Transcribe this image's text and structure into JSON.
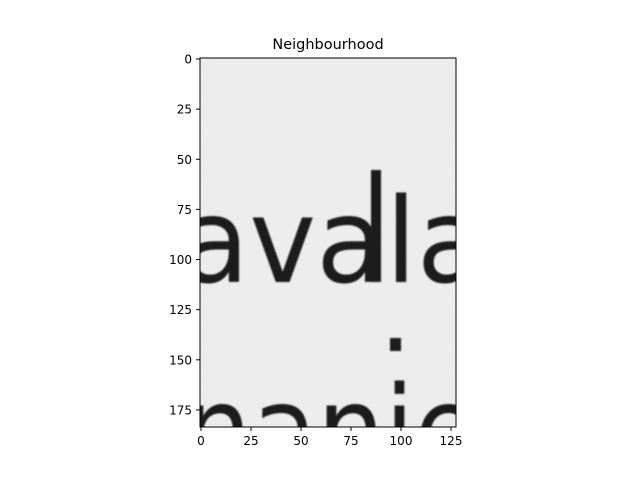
{
  "chart_data": {
    "type": "heatmap",
    "title": "Neighbourhood",
    "xlabel": "",
    "ylabel": "",
    "colormap": "gray",
    "image_content_text": [
      "avala",
      "nanie"
    ],
    "xlim": [
      -0.5,
      127.5
    ],
    "ylim": [
      183.5,
      -0.5
    ],
    "y_axis_inverted": true,
    "xticks": [
      0,
      25,
      50,
      75,
      100,
      125
    ],
    "xtick_labels": [
      "0",
      "25",
      "50",
      "75",
      "100",
      "125"
    ],
    "yticks": [
      0,
      25,
      50,
      75,
      100,
      125,
      150,
      175
    ],
    "ytick_labels": [
      "0",
      "25",
      "50",
      "75",
      "100",
      "125",
      "150",
      "175"
    ],
    "grid": false,
    "legend": "none",
    "colors": {
      "background": "#efefef",
      "ink": "#1a1a1a",
      "axes": "#000000"
    }
  }
}
